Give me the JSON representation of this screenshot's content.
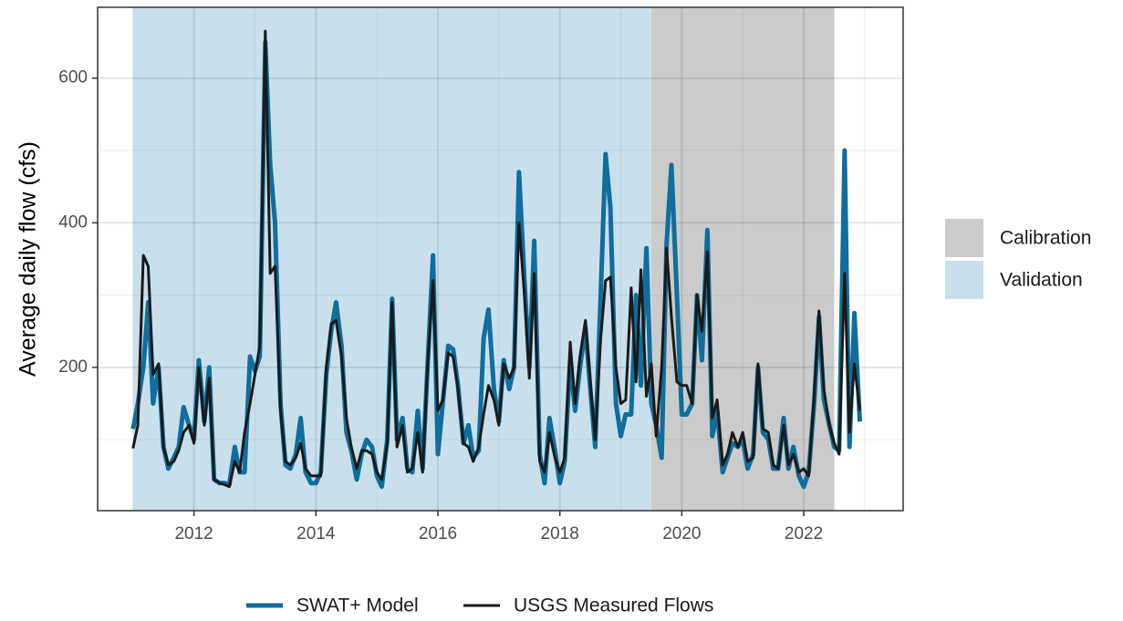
{
  "chart_data": {
    "type": "line",
    "y_label": "Average daily flow (cfs)",
    "x": [
      2011.0,
      2011.08,
      2011.17,
      2011.25,
      2011.33,
      2011.42,
      2011.5,
      2011.58,
      2011.67,
      2011.75,
      2011.83,
      2011.92,
      2012.0,
      2012.08,
      2012.17,
      2012.25,
      2012.33,
      2012.42,
      2012.5,
      2012.58,
      2012.67,
      2012.75,
      2012.83,
      2012.92,
      2013.0,
      2013.08,
      2013.17,
      2013.25,
      2013.33,
      2013.42,
      2013.5,
      2013.58,
      2013.67,
      2013.75,
      2013.83,
      2013.92,
      2014.0,
      2014.08,
      2014.17,
      2014.25,
      2014.33,
      2014.42,
      2014.5,
      2014.58,
      2014.67,
      2014.75,
      2014.83,
      2014.92,
      2015.0,
      2015.08,
      2015.17,
      2015.25,
      2015.33,
      2015.42,
      2015.5,
      2015.58,
      2015.67,
      2015.75,
      2015.83,
      2015.92,
      2016.0,
      2016.08,
      2016.17,
      2016.25,
      2016.33,
      2016.42,
      2016.5,
      2016.58,
      2016.67,
      2016.75,
      2016.83,
      2016.92,
      2017.0,
      2017.08,
      2017.17,
      2017.25,
      2017.33,
      2017.42,
      2017.5,
      2017.58,
      2017.67,
      2017.75,
      2017.83,
      2017.92,
      2018.0,
      2018.08,
      2018.17,
      2018.25,
      2018.33,
      2018.42,
      2018.5,
      2018.58,
      2018.67,
      2018.75,
      2018.83,
      2018.92,
      2019.0,
      2019.08,
      2019.17,
      2019.25,
      2019.33,
      2019.42,
      2019.5,
      2019.58,
      2019.67,
      2019.75,
      2019.83,
      2019.92,
      2020.0,
      2020.08,
      2020.17,
      2020.25,
      2020.33,
      2020.42,
      2020.5,
      2020.58,
      2020.67,
      2020.75,
      2020.83,
      2020.92,
      2021.0,
      2021.08,
      2021.17,
      2021.25,
      2021.33,
      2021.42,
      2021.5,
      2021.58,
      2021.67,
      2021.75,
      2021.83,
      2021.92,
      2022.0,
      2022.08,
      2022.17,
      2022.25,
      2022.33,
      2022.42,
      2022.5,
      2022.58,
      2022.67,
      2022.75,
      2022.83,
      2022.92
    ],
    "series": [
      {
        "name": "SWAT+ Model",
        "color": "#0f6e9c",
        "width": 5,
        "values": [
          115,
          150,
          200,
          290,
          150,
          200,
          90,
          60,
          75,
          90,
          145,
          120,
          100,
          210,
          125,
          200,
          45,
          40,
          40,
          38,
          90,
          55,
          55,
          215,
          195,
          215,
          650,
          480,
          400,
          150,
          65,
          60,
          80,
          130,
          55,
          40,
          40,
          55,
          190,
          250,
          290,
          230,
          110,
          85,
          45,
          80,
          100,
          90,
          50,
          35,
          100,
          295,
          100,
          130,
          60,
          55,
          140,
          60,
          200,
          355,
          80,
          150,
          230,
          225,
          175,
          95,
          120,
          75,
          85,
          240,
          280,
          170,
          125,
          210,
          170,
          200,
          470,
          320,
          200,
          375,
          80,
          40,
          130,
          85,
          40,
          70,
          210,
          140,
          200,
          255,
          170,
          90,
          300,
          495,
          420,
          150,
          105,
          135,
          135,
          300,
          175,
          365,
          150,
          120,
          75,
          370,
          480,
          300,
          135,
          135,
          150,
          300,
          210,
          390,
          105,
          140,
          55,
          75,
          95,
          90,
          100,
          60,
          80,
          200,
          110,
          100,
          60,
          60,
          130,
          60,
          90,
          50,
          35,
          55,
          150,
          270,
          155,
          120,
          90,
          85,
          500,
          90,
          275,
          125
        ]
      },
      {
        "name": "USGS Measured Flows",
        "color": "#1a1a1a",
        "width": 3,
        "values": [
          88,
          120,
          355,
          340,
          190,
          205,
          90,
          65,
          70,
          85,
          110,
          120,
          95,
          200,
          120,
          185,
          45,
          40,
          38,
          35,
          70,
          55,
          110,
          150,
          190,
          230,
          665,
          330,
          340,
          140,
          70,
          65,
          75,
          95,
          60,
          50,
          50,
          50,
          200,
          260,
          265,
          215,
          130,
          90,
          60,
          85,
          85,
          80,
          55,
          45,
          95,
          290,
          90,
          120,
          55,
          60,
          110,
          55,
          200,
          320,
          140,
          155,
          220,
          215,
          170,
          95,
          90,
          70,
          90,
          135,
          175,
          155,
          120,
          205,
          185,
          200,
          400,
          300,
          185,
          330,
          70,
          55,
          110,
          75,
          55,
          75,
          235,
          150,
          215,
          265,
          180,
          100,
          240,
          320,
          325,
          200,
          150,
          155,
          310,
          180,
          335,
          160,
          205,
          105,
          200,
          365,
          270,
          180,
          175,
          175,
          150,
          300,
          250,
          360,
          130,
          155,
          65,
          80,
          110,
          90,
          110,
          70,
          75,
          205,
          115,
          110,
          65,
          60,
          120,
          65,
          80,
          55,
          60,
          50,
          160,
          278,
          170,
          120,
          95,
          80,
          330,
          110,
          205,
          140
        ]
      }
    ],
    "regions": [
      {
        "name": "Calibration",
        "color": "#cbcbcb",
        "from": 2019.5,
        "to": 2022.5
      },
      {
        "name": "Validation",
        "color": "#c9e0ec",
        "from": 2011.0,
        "to": 2019.5
      }
    ],
    "xlim": [
      2010.42,
      2023.63
    ],
    "xticks": [
      2012,
      2014,
      2016,
      2018,
      2020,
      2022
    ],
    "x_minor_ticks": [
      2011,
      2013,
      2015,
      2017,
      2019,
      2021,
      2023
    ],
    "ylim": [
      1.9,
      698
    ],
    "yticks": [
      200,
      400,
      600
    ],
    "y_minor_ticks": [
      100,
      300,
      500
    ],
    "grid": true
  }
}
